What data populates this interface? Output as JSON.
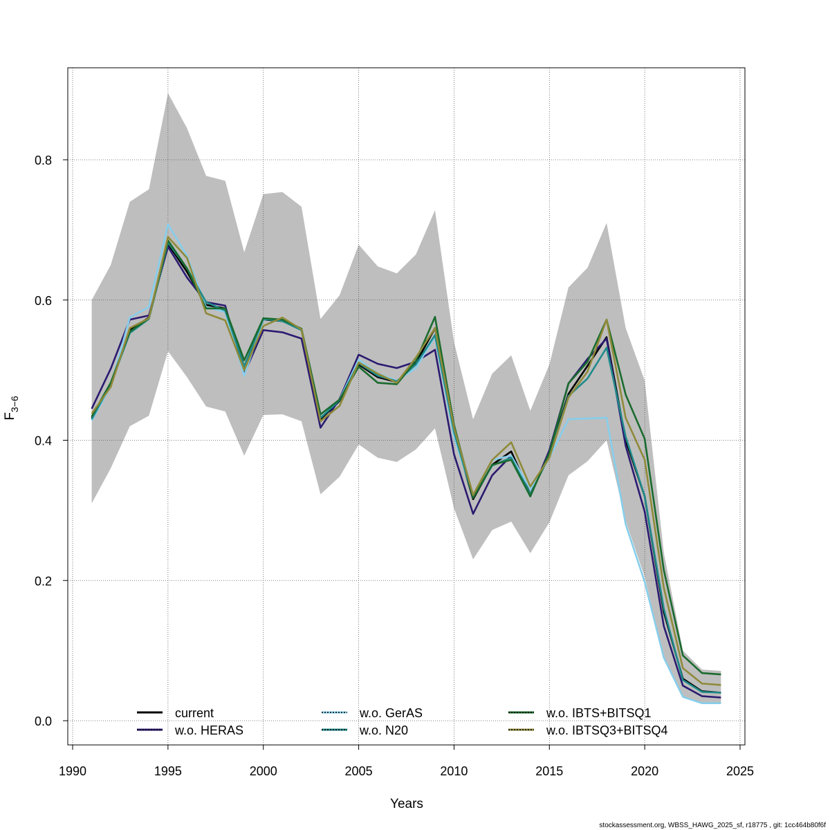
{
  "chart_data": {
    "type": "line",
    "xlabel": "Years",
    "ylabel_main": "F",
    "ylabel_sub": "3−6",
    "xlim": [
      1989.8,
      1990.4
    ],
    "x_range": [
      1990,
      2025
    ],
    "ylim": [
      -0.035,
      0.93
    ],
    "x_ticks": [
      1990,
      1995,
      2000,
      2005,
      2010,
      2015,
      2020,
      2025
    ],
    "y_ticks": [
      0.0,
      0.2,
      0.4,
      0.6,
      0.8
    ],
    "y_tick_labels": [
      "0.0",
      "0.2",
      "0.4",
      "0.6",
      "0.8"
    ],
    "x_tick_labels": [
      "1990",
      "1995",
      "2000",
      "2005",
      "2010",
      "2015",
      "2020",
      "2025"
    ],
    "grid": true,
    "legend_position": "bottom",
    "x": [
      1991,
      1992,
      1993,
      1994,
      1995,
      1996,
      1997,
      1998,
      1999,
      2000,
      2001,
      2002,
      2003,
      2004,
      2005,
      2006,
      2007,
      2008,
      2009,
      2010,
      2011,
      2012,
      2013,
      2014,
      2015,
      2016,
      2017,
      2018,
      2019,
      2020,
      2021,
      2022,
      2023,
      2024
    ],
    "band": {
      "color": "#bebebe",
      "upper": [
        0.6,
        0.65,
        0.74,
        0.758,
        0.895,
        0.845,
        0.777,
        0.77,
        0.668,
        0.751,
        0.754,
        0.733,
        0.573,
        0.607,
        0.679,
        0.648,
        0.638,
        0.665,
        0.728,
        0.54,
        0.43,
        0.495,
        0.521,
        0.442,
        0.508,
        0.618,
        0.646,
        0.71,
        0.56,
        0.485,
        0.24,
        0.1,
        0.073,
        0.071
      ],
      "lower": [
        0.31,
        0.36,
        0.42,
        0.435,
        0.527,
        0.49,
        0.448,
        0.441,
        0.378,
        0.436,
        0.437,
        0.427,
        0.323,
        0.348,
        0.394,
        0.375,
        0.369,
        0.387,
        0.417,
        0.303,
        0.23,
        0.272,
        0.284,
        0.239,
        0.283,
        0.35,
        0.37,
        0.4,
        0.285,
        0.205,
        0.09,
        0.035,
        0.024,
        0.024
      ]
    },
    "series": [
      {
        "name": "current",
        "color": "#000000",
        "dash": "solid",
        "values": [
          0.432,
          0.478,
          0.557,
          0.575,
          0.68,
          0.64,
          0.593,
          0.588,
          0.505,
          0.572,
          0.57,
          0.558,
          0.43,
          0.456,
          0.508,
          0.49,
          0.483,
          0.51,
          0.56,
          0.41,
          0.316,
          0.365,
          0.384,
          0.323,
          0.38,
          0.466,
          0.506,
          0.547,
          0.4,
          0.32,
          0.155,
          0.06,
          0.042,
          0.04
        ]
      },
      {
        "name": "w.o. HERAS",
        "color": "#2b1a70",
        "dash": "solid",
        "values": [
          0.445,
          0.502,
          0.572,
          0.578,
          0.676,
          0.632,
          0.597,
          0.592,
          0.495,
          0.557,
          0.554,
          0.545,
          0.418,
          0.459,
          0.522,
          0.509,
          0.503,
          0.512,
          0.529,
          0.38,
          0.295,
          0.35,
          0.378,
          0.32,
          0.386,
          0.481,
          0.516,
          0.545,
          0.392,
          0.298,
          0.135,
          0.05,
          0.035,
          0.033
        ]
      },
      {
        "name": "w.o. GerAS",
        "color": "#87ceeb",
        "dash": "solid",
        "values": [
          0.428,
          0.477,
          0.575,
          0.59,
          0.708,
          0.663,
          0.59,
          0.583,
          0.492,
          0.572,
          0.573,
          0.558,
          0.432,
          0.458,
          0.515,
          0.495,
          0.485,
          0.503,
          0.548,
          0.405,
          0.32,
          0.372,
          0.378,
          0.33,
          0.375,
          0.43,
          0.431,
          0.432,
          0.28,
          0.198,
          0.09,
          0.034,
          0.025,
          0.025
        ]
      },
      {
        "name": "w.o. N20",
        "color": "#1f8a8a",
        "dash": "solid",
        "values": [
          0.43,
          0.48,
          0.553,
          0.573,
          0.682,
          0.645,
          0.597,
          0.585,
          0.505,
          0.573,
          0.57,
          0.557,
          0.432,
          0.457,
          0.51,
          0.492,
          0.484,
          0.508,
          0.55,
          0.412,
          0.318,
          0.364,
          0.375,
          0.323,
          0.378,
          0.463,
          0.488,
          0.532,
          0.405,
          0.32,
          0.16,
          0.058,
          0.041,
          0.04
        ]
      },
      {
        "name": "w.o. IBTS+BITSQ1",
        "color": "#1a6b2e",
        "dash": "solid",
        "values": [
          0.434,
          0.482,
          0.555,
          0.574,
          0.685,
          0.645,
          0.588,
          0.588,
          0.514,
          0.574,
          0.572,
          0.559,
          0.437,
          0.458,
          0.505,
          0.482,
          0.48,
          0.513,
          0.576,
          0.422,
          0.318,
          0.365,
          0.372,
          0.32,
          0.382,
          0.481,
          0.512,
          0.572,
          0.465,
          0.402,
          0.215,
          0.093,
          0.068,
          0.066
        ]
      },
      {
        "name": "w.o. IBTSQ3+BITSQ4",
        "color": "#8f8a3a",
        "dash": "solid",
        "values": [
          0.438,
          0.476,
          0.56,
          0.574,
          0.69,
          0.66,
          0.581,
          0.571,
          0.5,
          0.563,
          0.575,
          0.558,
          0.427,
          0.449,
          0.511,
          0.495,
          0.482,
          0.518,
          0.56,
          0.418,
          0.322,
          0.372,
          0.397,
          0.334,
          0.375,
          0.461,
          0.498,
          0.572,
          0.432,
          0.372,
          0.19,
          0.075,
          0.053,
          0.051
        ]
      }
    ]
  },
  "legend": {
    "items": [
      {
        "label": "current",
        "color": "#000000",
        "inner": null
      },
      {
        "label": "w.o. HERAS",
        "color": "#2b1a70",
        "inner": "#000000"
      },
      {
        "label": "w.o. GerAS",
        "color": "#87ceeb",
        "inner": "#000000"
      },
      {
        "label": "w.o. N20",
        "color": "#1f8a8a",
        "inner": "#000000"
      },
      {
        "label": "w.o. IBTS+BITSQ1",
        "color": "#1a6b2e",
        "inner": "#000000"
      },
      {
        "label": "w.o. IBTSQ3+BITSQ4",
        "color": "#8f8a3a",
        "inner": "#000000"
      }
    ]
  },
  "footer": {
    "text": "stockassessment.org, WBSS_HAWG_2025_sf, r18775 , git: 1cc464b80f6f"
  }
}
